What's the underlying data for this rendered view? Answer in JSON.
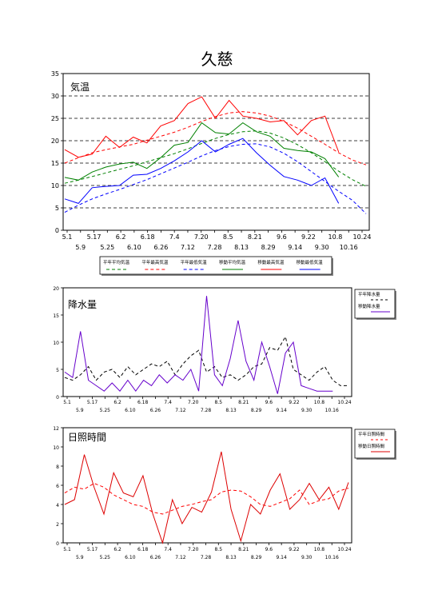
{
  "page": {
    "title": "久慈"
  },
  "chart_data": [
    {
      "type": "line",
      "ylabel": "気温",
      "ylim": [
        0,
        35
      ],
      "yticks": [
        0,
        5,
        10,
        15,
        20,
        25,
        30,
        35
      ],
      "xtick_labels_row1": [
        "5.1",
        "5.17",
        "6.2",
        "6.18",
        "7.4",
        "7.20",
        "8.5",
        "8.21",
        "9.6",
        "9.22",
        "10.8",
        "10.24"
      ],
      "xtick_labels_row2": [
        "5.9",
        "5.25",
        "6.10",
        "6.26",
        "7.12",
        "7.28",
        "8.13",
        "8.29",
        "9.14",
        "9.30",
        "10.16"
      ],
      "grid": "horizontal dashed",
      "legend_position": "below",
      "series": [
        {
          "name": "平年平均気温",
          "color": "#008000",
          "dash": true,
          "values": [
            10.5,
            11.2,
            12.0,
            12.8,
            13.6,
            14.4,
            15.3,
            16.2,
            17.1,
            18.2,
            19.4,
            20.5,
            21.4,
            22.0,
            22.2,
            21.7,
            20.6,
            19.1,
            17.3,
            15.3,
            13.2,
            11.3,
            9.8
          ]
        },
        {
          "name": "平年最高気温",
          "color": "#ff0000",
          "dash": true,
          "values": [
            15.0,
            16.2,
            17.3,
            18.0,
            18.6,
            19.2,
            20.1,
            21.0,
            21.9,
            23.0,
            24.3,
            25.4,
            26.2,
            26.5,
            26.2,
            25.5,
            24.3,
            22.8,
            21.0,
            19.2,
            17.3,
            15.7,
            14.6
          ]
        },
        {
          "name": "平年最低気温",
          "color": "#0000ff",
          "dash": true,
          "values": [
            4.0,
            5.6,
            7.0,
            8.1,
            9.1,
            10.2,
            11.3,
            12.6,
            13.9,
            15.2,
            16.6,
            17.8,
            18.7,
            19.2,
            19.3,
            18.6,
            17.2,
            15.3,
            13.1,
            10.9,
            8.7,
            6.7,
            3.7
          ]
        },
        {
          "name": "移動平均気温",
          "color": "#008000",
          "dash": false,
          "values": [
            11.8,
            11.2,
            13.0,
            14.1,
            14.8,
            15.2,
            13.8,
            16.2,
            19.0,
            19.6,
            24.0,
            21.8,
            21.5,
            24.0,
            22.0,
            21.0,
            18.3,
            17.8,
            17.5,
            16.0,
            11.9,
            null,
            null
          ]
        },
        {
          "name": "移動最高気温",
          "color": "#ff0000",
          "dash": false,
          "values": [
            18.0,
            16.3,
            17.0,
            21.0,
            18.5,
            20.8,
            19.5,
            23.3,
            24.5,
            28.3,
            29.8,
            25.0,
            29.0,
            25.5,
            25.0,
            24.2,
            24.5,
            21.3,
            24.5,
            25.5,
            17.5,
            null,
            null
          ]
        },
        {
          "name": "移動最低気温",
          "color": "#0000ff",
          "dash": false,
          "values": [
            7.0,
            6.0,
            9.5,
            9.8,
            10.0,
            12.3,
            12.5,
            13.8,
            15.5,
            17.5,
            20.0,
            17.5,
            19.2,
            20.5,
            17.3,
            14.5,
            12.0,
            11.2,
            10.0,
            11.7,
            6.0,
            null,
            null
          ]
        }
      ]
    },
    {
      "type": "line",
      "ylabel": "降水量",
      "ylim": [
        0,
        20
      ],
      "yticks": [
        0,
        5,
        10,
        15,
        20
      ],
      "xtick_labels_row1": [
        "5.1",
        "5.17",
        "6.2",
        "6.18",
        "7.4",
        "7.20",
        "8.5",
        "8.21",
        "9.6",
        "9.22",
        "10.8",
        "10.24"
      ],
      "xtick_labels_row2": [
        "5.9",
        "5.25",
        "6.10",
        "6.26",
        "7.12",
        "7.28",
        "8.13",
        "8.29",
        "9.14",
        "9.30",
        "10.16"
      ],
      "legend_position": "right",
      "series": [
        {
          "name": "平年降水量",
          "color": "#000000",
          "dash": true,
          "values": [
            3.5,
            3.0,
            4.0,
            5.5,
            3.0,
            4.5,
            5.0,
            3.5,
            5.5,
            4.0,
            5.0,
            6.0,
            5.5,
            6.5,
            4.0,
            6.0,
            7.5,
            8.5,
            4.5,
            5.5,
            3.5,
            4.0,
            3.0,
            4.0,
            5.5,
            6.0,
            9.0,
            8.5,
            11.0,
            5.0,
            4.0,
            3.0,
            4.5,
            5.5,
            3.0,
            2.0,
            2.0
          ]
        },
        {
          "name": "移動降水量",
          "color": "#6600cc",
          "dash": false,
          "values": [
            4.5,
            3.5,
            12.0,
            3.0,
            2.0,
            1.0,
            2.5,
            1.0,
            3.0,
            1.0,
            3.0,
            2.0,
            4.0,
            2.5,
            4.0,
            3.0,
            5.0,
            1.0,
            18.5,
            4.0,
            2.0,
            7.0,
            14.0,
            6.5,
            3.0,
            10.0,
            5.5,
            0.5,
            8.0,
            10.0,
            2.0,
            1.5,
            1.0,
            1.0,
            1.0,
            null,
            null
          ]
        }
      ]
    },
    {
      "type": "line",
      "ylabel": "日照時間",
      "ylim": [
        0,
        12
      ],
      "yticks": [
        0,
        2,
        4,
        6,
        8,
        10,
        12
      ],
      "xtick_labels_row1": [
        "5.1",
        "5.17",
        "6.2",
        "6.18",
        "7.4",
        "7.20",
        "8.5",
        "8.21",
        "9.6",
        "9.22",
        "10.8",
        "10.24"
      ],
      "xtick_labels_row2": [
        "5.9",
        "5.25",
        "6.10",
        "6.26",
        "7.12",
        "7.28",
        "8.13",
        "8.29",
        "9.14",
        "9.30",
        "10.16"
      ],
      "legend_position": "right",
      "series": [
        {
          "name": "平年日照時間",
          "color": "#ff0000",
          "dash": true,
          "values": [
            5.2,
            5.8,
            5.6,
            6.2,
            5.8,
            5.0,
            4.5,
            4.0,
            3.8,
            3.2,
            3.0,
            3.4,
            3.8,
            4.0,
            4.3,
            4.5,
            5.3,
            5.5,
            5.4,
            4.8,
            4.0,
            3.8,
            4.2,
            4.6,
            5.5,
            4.0,
            4.4,
            4.6,
            5.4,
            5.7
          ]
        },
        {
          "name": "移動日照時間",
          "color": "#dd0000",
          "dash": false,
          "values": [
            4.0,
            4.5,
            9.2,
            5.8,
            3.0,
            7.3,
            5.2,
            4.8,
            7.0,
            3.0,
            0.0,
            4.5,
            2.0,
            3.7,
            3.2,
            5.3,
            9.5,
            3.5,
            0.2,
            4.0,
            3.0,
            5.5,
            7.2,
            3.5,
            4.5,
            6.2,
            4.5,
            5.8,
            3.5,
            6.3
          ]
        }
      ]
    }
  ]
}
